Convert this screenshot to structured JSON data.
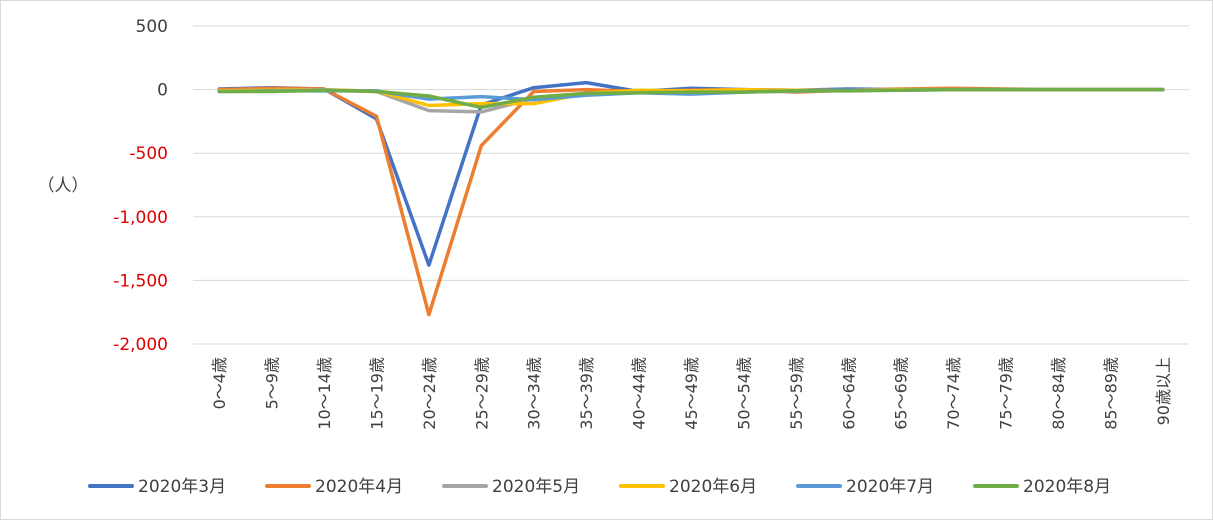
{
  "chart_data": {
    "type": "line",
    "ylabel": "（人）",
    "ylim": [
      -2000,
      500
    ],
    "yticks": [
      500,
      0,
      -500,
      -1000,
      -1500,
      -2000
    ],
    "ytick_labels": [
      "500",
      "0",
      "-500",
      "-1,000",
      "-1,500",
      "-2,000"
    ],
    "negative_tick_color": "#e00000",
    "grid": true,
    "legend_position": "bottom",
    "categories": [
      "0～4歳",
      "5～9歳",
      "10～14歳",
      "15～19歳",
      "20～24歳",
      "25～29歳",
      "30～34歳",
      "35～39歳",
      "40～44歳",
      "45～49歳",
      "50～54歳",
      "55～59歳",
      "60～64歳",
      "65～69歳",
      "70～74歳",
      "75～79歳",
      "80～84歳",
      "85～89歳",
      "90歳以上"
    ],
    "series": [
      {
        "name": "2020年3月",
        "color": "#4472c4",
        "values": [
          5,
          15,
          5,
          -230,
          -1380,
          -120,
          15,
          55,
          -15,
          10,
          0,
          -5,
          5,
          0,
          5,
          0,
          0,
          0,
          0
        ]
      },
      {
        "name": "2020年4月",
        "color": "#ed7d31",
        "values": [
          0,
          10,
          5,
          -210,
          -1770,
          -440,
          -15,
          0,
          -15,
          -5,
          0,
          -20,
          -5,
          5,
          10,
          5,
          0,
          0,
          0
        ]
      },
      {
        "name": "2020年5月",
        "color": "#a5a5a5",
        "values": [
          -10,
          -5,
          0,
          -15,
          -165,
          -175,
          -70,
          -30,
          -20,
          -25,
          -15,
          -15,
          -5,
          0,
          0,
          0,
          0,
          0,
          0
        ]
      },
      {
        "name": "2020年6月",
        "color": "#ffc000",
        "values": [
          -10,
          -5,
          -5,
          -10,
          -125,
          -110,
          -110,
          -30,
          -5,
          -10,
          0,
          -5,
          -5,
          0,
          0,
          0,
          0,
          0,
          0
        ]
      },
      {
        "name": "2020年7月",
        "color": "#5b9bd5",
        "values": [
          -15,
          -10,
          -10,
          -10,
          -75,
          -55,
          -80,
          -45,
          -25,
          -35,
          -20,
          -10,
          -5,
          -5,
          0,
          0,
          0,
          0,
          0
        ]
      },
      {
        "name": "2020年8月",
        "color": "#70ad47",
        "values": [
          -15,
          -15,
          -5,
          -15,
          -50,
          -140,
          -60,
          -30,
          -25,
          -20,
          -20,
          -10,
          -10,
          -5,
          0,
          0,
          0,
          0,
          0
        ]
      }
    ]
  }
}
